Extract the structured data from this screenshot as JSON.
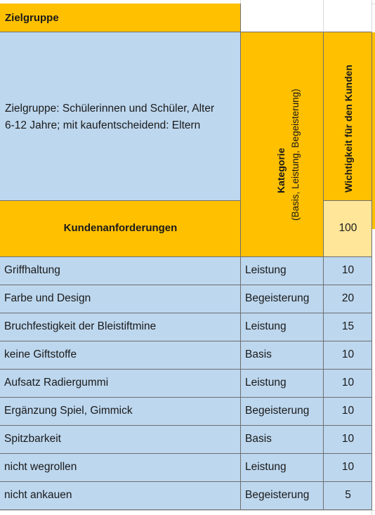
{
  "header": {
    "zielgruppe_label": "Zielgruppe",
    "zielgruppe_text_line1": "Zielgruppe: Schülerinnen und Schüler, Alter",
    "zielgruppe_text_line2": "6-12 Jahre; mit kaufentscheidend: Eltern",
    "kategorie_title": "Kategorie",
    "kategorie_sub": "(Basis, Leistung, Begeisterung)",
    "wichtigkeit_title": "Wichtigkeit für den Kunden",
    "kundenanforderungen_label": "Kundenanforderungen",
    "total_value": "100"
  },
  "rows": [
    {
      "requirement": "Griffhaltung",
      "category": "Leistung",
      "weight": "10"
    },
    {
      "requirement": "Farbe und Design",
      "category": "Begeisterung",
      "weight": "20"
    },
    {
      "requirement": "Bruchfestigkeit der Bleistiftmine",
      "category": "Leistung",
      "weight": "15"
    },
    {
      "requirement": "keine Giftstoffe",
      "category": "Basis",
      "weight": "10"
    },
    {
      "requirement": "Aufsatz Radiergummi",
      "category": "Leistung",
      "weight": "10"
    },
    {
      "requirement": "Ergänzung Spiel, Gimmick",
      "category": "Begeisterung",
      "weight": "10"
    },
    {
      "requirement": "Spitzbarkeit",
      "category": "Basis",
      "weight": "10"
    },
    {
      "requirement": "nicht wegrollen",
      "category": "Leistung",
      "weight": "10"
    },
    {
      "requirement": "nicht ankauen",
      "category": "Begeisterung",
      "weight": "5"
    }
  ],
  "colors": {
    "header_orange": "#ffc000",
    "cell_blue": "#bdd7ee",
    "total_yellow": "#ffe699",
    "border": "#6f6f6f"
  }
}
